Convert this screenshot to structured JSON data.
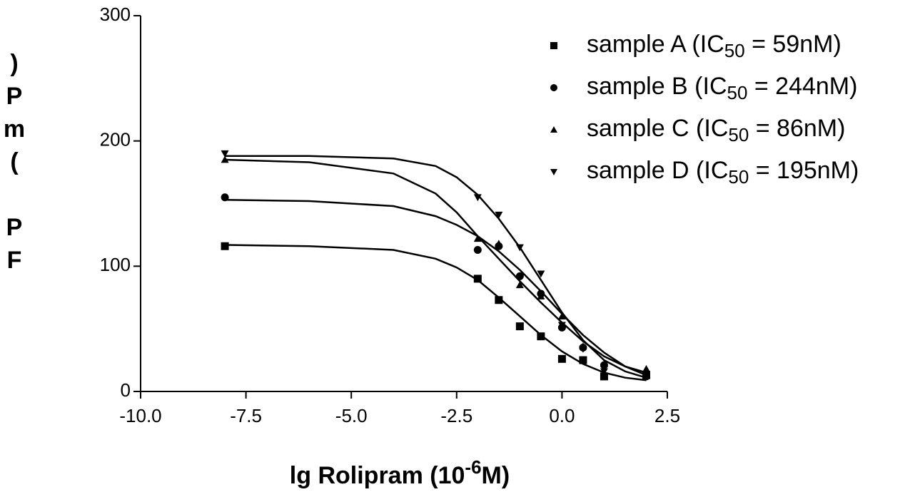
{
  "chart_data": {
    "type": "scatter",
    "ylabel": "FP (mP)",
    "xlabel": {
      "text": "lg Rolipram (10",
      "sup": "-6",
      "after": "M)"
    },
    "xlim": [
      -10,
      2.5
    ],
    "ylim": [
      0,
      300
    ],
    "xticks": [
      {
        "value": -10,
        "label": "-10.0"
      },
      -7.5,
      {
        "value": -5,
        "label": "-5.0"
      },
      -2.5,
      {
        "value": 0,
        "label": "0.0"
      },
      2.5
    ],
    "yticks": [
      0,
      100,
      200,
      300
    ],
    "x": [
      -8,
      -2,
      -1.5,
      -1,
      -0.5,
      0,
      0.5,
      1,
      2
    ],
    "fit_x": [
      -8,
      -6,
      -4,
      -3,
      -2.5,
      -2,
      -1.5,
      -1,
      -0.5,
      0,
      0.5,
      1,
      1.5,
      2
    ],
    "series": [
      {
        "name": "sample A (IC50 = 59nM)",
        "color": "#000000",
        "marker": "square",
        "values": [
          116,
          90,
          73,
          52,
          44,
          26,
          25,
          12,
          13
        ],
        "fit_values": [
          117,
          116,
          113,
          106,
          99,
          89,
          75,
          60,
          45,
          32,
          22,
          15,
          11,
          9
        ]
      },
      {
        "name": "sample B (IC50 = 244nM)",
        "color": "#000000",
        "marker": "circle",
        "values": [
          155,
          113,
          116,
          92,
          78,
          51,
          35,
          21,
          12
        ],
        "fit_values": [
          153,
          152,
          148,
          140,
          133,
          124,
          112,
          97,
          80,
          62,
          45,
          31,
          20,
          13
        ]
      },
      {
        "name": "sample C (IC50 = 86nM)",
        "color": "#000000",
        "marker": "triangle-up",
        "values": [
          185,
          122,
          118,
          85,
          76,
          60,
          36,
          22,
          18
        ],
        "fit_values": [
          185,
          183,
          174,
          158,
          143,
          124,
          106,
          88,
          71,
          55,
          40,
          28,
          20,
          15
        ]
      },
      {
        "name": "sample D (IC50 = 195nM)",
        "color": "#000000",
        "marker": "triangle-down",
        "values": [
          190,
          155,
          141,
          115,
          94,
          53,
          34,
          16,
          14
        ],
        "fit_values": [
          188,
          188,
          186,
          180,
          171,
          157,
          138,
          115,
          89,
          63,
          41,
          25,
          16,
          11
        ]
      }
    ]
  }
}
